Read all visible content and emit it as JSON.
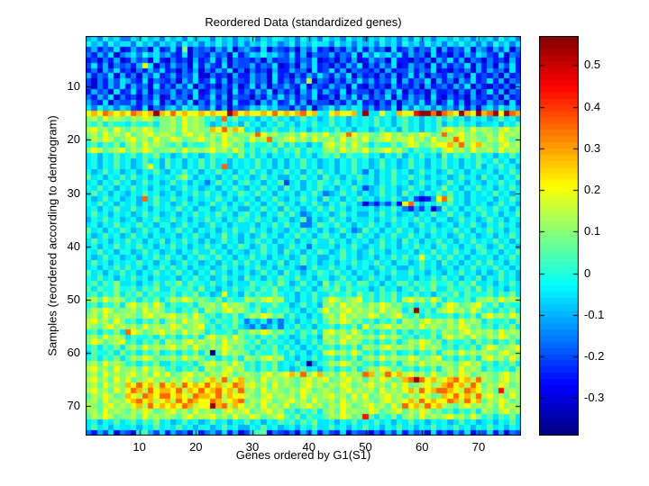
{
  "figure": {
    "title": "Reordered Data (standardized genes)",
    "xlabel": "Genes ordered by G1(S1)",
    "ylabel": "Samples (reordered according to dendrogram)",
    "background_color": "#ffffff",
    "axis_color": "#000000"
  },
  "chart_data": {
    "type": "heatmap",
    "title": "Reordered Data (standardized genes)",
    "xlabel": "Genes ordered by G1(S1)",
    "ylabel": "Samples (reordered according to dendrogram)",
    "n_cols": 77,
    "n_rows": 75,
    "x_ticks": [
      10,
      20,
      30,
      40,
      50,
      60,
      70
    ],
    "y_ticks": [
      10,
      20,
      30,
      40,
      50,
      60,
      70
    ],
    "colorbar_ticks": [
      0.5,
      0.4,
      0.3,
      0.2,
      0.1,
      0,
      -0.1,
      -0.2,
      -0.3
    ],
    "vmin": -0.39,
    "vmax": 0.57,
    "colormap": "jet",
    "colormap_levels": 64,
    "legend_position": "right-colorbar",
    "grid": false,
    "value_key": {
      "0": -0.375,
      "1": -0.3,
      "2": -0.25,
      "3": -0.2,
      "4": -0.15,
      "5": -0.1,
      "6": -0.05,
      "7": 0,
      "8": 0.05,
      "9": 0.1,
      "a": 0.15,
      "b": 0.2,
      "c": 0.275,
      "d": 0.35,
      "e": 0.45,
      "f": 0.55
    },
    "rows": [
      "56475644657564756475664756465746576564756475647564657564647564665756465647564",
      "75647566475646564756465756464657564574657664756465647564756475646575646475646",
      "35243612534162362914342536145326143241536231425362534162352436152436154253614",
      "42536145647564532614325341624657564362514335243616475646253416231425365326143",
      "23142512534162142315236251433241523352436123142512534162213241536251431423152",
      "3625143425b614253416253261433524361241536231425361425361253416252436152415362",
      "24153623142536231425142536141423152253416236251433241523352436121324152534162",
      "52436152415362352436114231522534162314253642536142314251362514325341623241523",
      "314253653261432415362362514325341624253a1431425363524361524361524153623625143",
      "31425362534162425361423142513625143532614325341621423152324152342536142132415",
      "25341623625143352436125341624253614241536253261433142536142315223142513625143",
      "42536142314251253416236251433142536352436124153625243615253416214231523241523",
      "53261433524361425361425341622415362362514331425362314251453625136251432534162",
      "64756465326143564756436251434657564425361457465763524361647564645362515647564",
      "bcbdcbcbdcbcfcbdbcbbcbcbbfdbcbbcbdbcbcdbc76bcbbc6f66b76cbbeffdfdcbfcbfcdfbfdc",
      "9a8b9a98a9ba899a8b9a9786d7966757686756867568675767686757867576868675767568675",
      "87968776877869 9a8b9a9756867586757686757686686757676867578675768576867566757686",
      "ab9a8b98a9ba899a8b9a99cbdacb67576866867576768675775686758675768ab9a8b9a98ab9a",
      "9a8b9a9b89ab9aa98ab9a8a9ba899adb9a89a8b9a9b89adb9a98ab9a8a9ba89d9ab9a89a8b9a9",
      "8a9ba89ab9a8b99ba89ab9a8b9a98b9ad89ab9a8b99a8b9a9b89ab9aab9a8b99adb9a98a9ba89",
      "78687969a8b9a987968778a9ba8968778696867576ab9a8b986877979ba89abbcad9bca98ab9a",
      "9ba89ab8a9ba899a8b9a9ab9a8b978687968796877 9a8b9a9b89ab9a8687797ab9a8b99a8b9a9",
      "67576867868796756867568778696867576768675787968778675768576867596878686757686",
      "67576867568675867576868675767686757576867567576867568675686757686757687686757",
      "67576867568b75867576 8686d5767686757576867567576867568675686757686757685768675",
      "75686756757686576867576867576867576867576867576864757686756867568675766757686",
      "86757686867576768a75767576867568675576867586757686757686686757675686758675768",
      "67576867568675686757646867578675768367576876867576757686756867568675765768675",
      "76867576867576756867567576865768675867576867576863568675686757696757686757686",
      "68675765768675675768686757687686757675768645686757568675867576868675767686757",
      "7568675675d68668675767686757675768657686758675768675768657  3125bd9675766757686",
      "768675767576867568675686757686757686757686576867514253 61bd7576868675767568675",
      "67576866867576768675775686755768675867576868675766757686425361486757687686757",
      "68675767568675675768676867578675768686457675686755768675675768668675768675768",
      "57686756757686686757686757687686757756847568675766757686768675775686756867576",
      "67576867686757756867568675766757686867446876867576867576756867567576865768675",
      "86757687568675768675767576866867576576867575686458675768675768676867576867576",
      "75686756867576675768657696757568675768675786757686757686686757675686756757686",
      "68675768675768576867575686757686757675768668675767568675867576867576867686757",
      "67576867686757686757686757687568675686747667576865768675768675786757687568675",
      "76867577568675675768668675765768675867576875686756867576675768676867578675768",
      "7568675675768686757687686757686757675686755768675675768 6867b76868675766757686",
      "68675767686757756867567576868675768576867567576867686757756867586757686867576",
      "67576868675768686757675686757686757675468668675767568675576867567576867686757",
      "86757686757686768675768675767568675867576876867576757686686757657686757568675",
      "76867576867576675768675686758675768768675775686756867576675768686757685768675",
      "78687966757686879687768675766877869756867596878688675768868779778687966757686",
      "86877977868796687786967576867868796768675787968777568675786879668778696867576",
      "78687968796877 7868796756b675868779767576866877869786879676867578796877 7868796",
      "9a8b9a978687968a9ba8987968 77a98ab9a67576869ba89ab7868796ab9a8b968778699a8b9a9",
      "7868796ab9a8b968778699a8b9a9868779775686759a8b9a98a9ba8978687969ba89ab8796877",
      "8a9ba899a8b9a97868796a98ab9a879687786757 68b89ab9a9a8b9a968f7869ab9a8b97868796",
      "9a8b9a9a98ab9aab9a8b978687968a9ba8968675769a8b9a99ba89ab879687778687 96ab9a8b9",
      "ab9a8b978687969a8b9a9868779746574646757686 8a9ba897868796a98ab9a9a8b9a96877869",
      "a98ab9a9a8b9a99ba89ab78687965464574768675778687 96b89ab9a9a8b9a98a9ba897868796",
      "7868796dba89ab9a8b9a968778698a9ba897868796ab9a8b9786879686877 97a98ab9a9a8b9a9",
      "9a8b9a9687786978687 96ab9a8b9786879675686 75a98ab9a9a8b9a97868796ab9a8b98a9ba89",
      "9ba89ab7868796a98ab9a9a8b9a98796877675768 69a8b9a978687968a9ba8968778697868796",
      "78687969a8b9a9ab9a8b98a9ba897868796867576878687 96a98ab9a9a8b9a978687969ba89ab",
      "68778697868796786879690 8b9a98687797686757 6ab9a8b9786879678687969a8b9a9a98ab9a",
      "78687968a9ba899a8b9a97868796a98ab9a675768 67868796 9a8b9a99ba89ab786879 6ab9a8b9",
      "9a8b9a978687966877869ab9a8b9786879676860578a9ba89786879 69a8b9a9a98ab9a7868796",
      "ab9a8b99a8b9a97868796a98ab9a7868796756867578687968a9ba89786879 69a8b9a96877869",
      "9a8b9a9ab9a8b9b89ab9a8a9ba89a98ab9abcad9bc9a8b9a9dc9adbcab9a8b98a9ba89a98ab9a",
      "ab9a8b9b89ab9a8a9ba89bcad9bc9a8b9a9a98ab9ab89ab9a8a9ba89cdfdbcabcdbcada98ab9a",
      "9a8b9a9cbdbcadbcadbcbdbcabdcab9a8b9a98ab9a8a9ba89ab9a8b9b89ab9acdbcadb8a9ba89",
      "ab9a8b9bdcadbccbdacbdbcdbcad9a8b9a98a9ba89a98ab9a9a8b9a9bcadbcddcbadcb9a8e9a9",
      "8a9ba89cbadcbddbcbadccbdacbba98ab9a9a8b9a9ab9a8b9b89ab9a8a9ba89cbdbcadab9a8b9",
      "9a8b9a9bcdbcabcadbdcbbdcabcd8a9ba89ab9a8b99a8b9a9a98ab9abcadbcbbdcadbc8a9ba89",
      "a98ab9a9bcadbcbcbdcabbfcdacb9a8b9a9b89ab9a8a9ba89ab9a8b9dbcadbca98ab9a9a8b9a9",
      "9a8b9a98a9ba89ab9a8b9a98ab9ab89ab9a78687969a8b9a99ba89ab8a9ba897868796a98ab9a",
      "8a9ba899a8b9a9a98ab9aab9a8b99ba89ab87968778a9ba89e8687969a8b9a9ab9a8b97868796",
      "67576867868796756867568675768675768786879667576867686757686757675686756757686",
      "68675766757686768675775686755768675675768668675768675768675768676867576867576",
      "42536143178536253416245362513688143241536253261433142536253416242536143625143"
    ]
  }
}
